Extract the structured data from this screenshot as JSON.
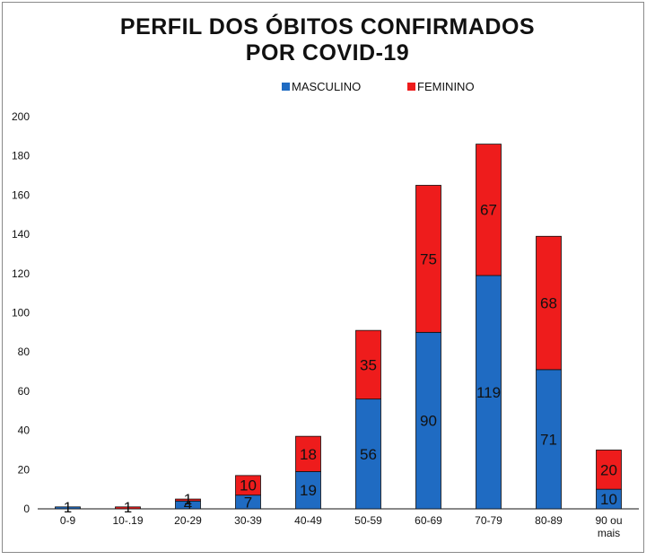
{
  "title_line1": "PERFIL DOS ÓBITOS CONFIRMADOS",
  "title_line2": "POR COVID-19",
  "chart_data": {
    "type": "bar",
    "stacked": true,
    "title": "PERFIL DOS ÓBITOS CONFIRMADOS POR COVID-19",
    "categories": [
      "0-9",
      "10-.19",
      "20-29",
      "30-39",
      "40-49",
      "50-59",
      "60-69",
      "70-79",
      "80-89",
      "90 ou mais"
    ],
    "category_lines": [
      [
        "0-9"
      ],
      [
        "10-.19"
      ],
      [
        "20-29"
      ],
      [
        "30-39"
      ],
      [
        "40-49"
      ],
      [
        "50-59"
      ],
      [
        "60-69"
      ],
      [
        "70-79"
      ],
      [
        "80-89"
      ],
      [
        "90 ou",
        "mais"
      ]
    ],
    "series": [
      {
        "name": "MASCULINO",
        "color": "#1f6bc2",
        "values": [
          1,
          0,
          4,
          7,
          19,
          56,
          90,
          119,
          71,
          10
        ]
      },
      {
        "name": "FEMININO",
        "color": "#ee1c1c",
        "values": [
          0,
          1,
          1,
          10,
          18,
          35,
          75,
          67,
          68,
          20
        ]
      }
    ],
    "ylim": [
      0,
      200
    ],
    "yticks": [
      0,
      20,
      40,
      60,
      80,
      100,
      120,
      140,
      160,
      180,
      200
    ],
    "xlabel": "",
    "ylabel": "",
    "legend_position": "top-center"
  }
}
